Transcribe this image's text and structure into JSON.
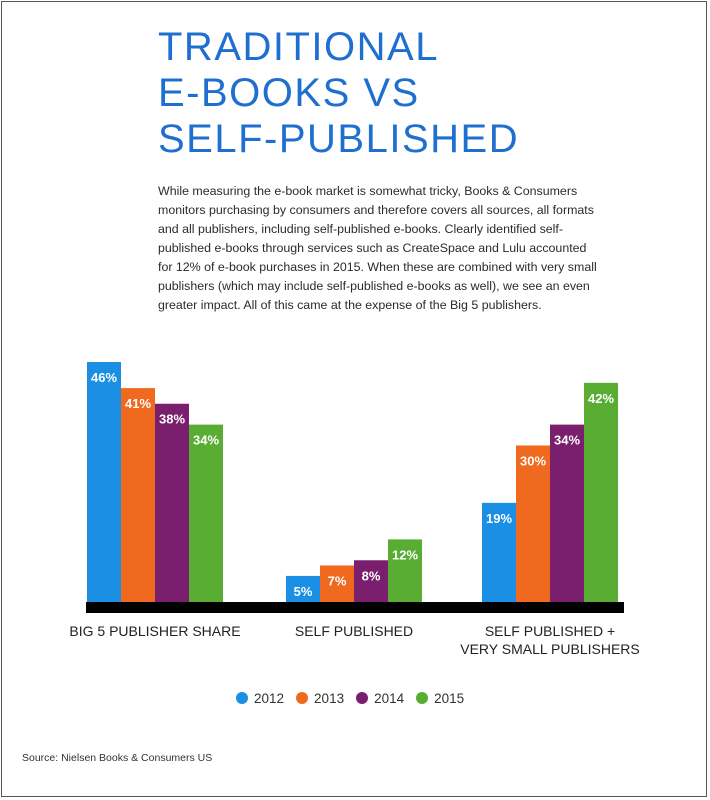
{
  "title_lines": [
    "TRADITIONAL",
    "E-BOOKS VS",
    "SELF-PUBLISHED"
  ],
  "intro": "While measuring the e-book market is somewhat tricky, Books & Consumers monitors purchasing by consumers and therefore covers all sources, all formats and all publishers, including self-published e-books. Clearly identified self-published e-books through services such as CreateSpace and Lulu accounted for 12% of e-book purchases in 2015. When these are combined with very small publishers (which may include self-published e-books as well), we see an even greater impact. All of this came at the expense of the Big 5 publishers.",
  "source": "Source: Nielsen Books & Consumers US",
  "chart_data": {
    "type": "bar",
    "categories": [
      "BIG 5 PUBLISHER SHARE",
      "SELF PUBLISHED",
      "SELF PUBLISHED + VERY SMALL PUBLISHERS"
    ],
    "category_label_lines": [
      [
        "BIG 5 PUBLISHER SHARE"
      ],
      [
        "SELF PUBLISHED"
      ],
      [
        "SELF PUBLISHED +",
        "VERY SMALL PUBLISHERS"
      ]
    ],
    "series": [
      {
        "name": "2012",
        "color": "#1a8fe3",
        "values": [
          46,
          5,
          19
        ]
      },
      {
        "name": "2013",
        "color": "#ef6a1f",
        "values": [
          41,
          7,
          30
        ]
      },
      {
        "name": "2014",
        "color": "#7a1f6e",
        "values": [
          38,
          8,
          34
        ]
      },
      {
        "name": "2015",
        "color": "#59ad33",
        "values": [
          34,
          12,
          42
        ]
      }
    ],
    "unit": "%",
    "ylim": [
      0,
      46
    ],
    "grid": false,
    "legend_position": "bottom",
    "baseline_color": "#000000"
  }
}
